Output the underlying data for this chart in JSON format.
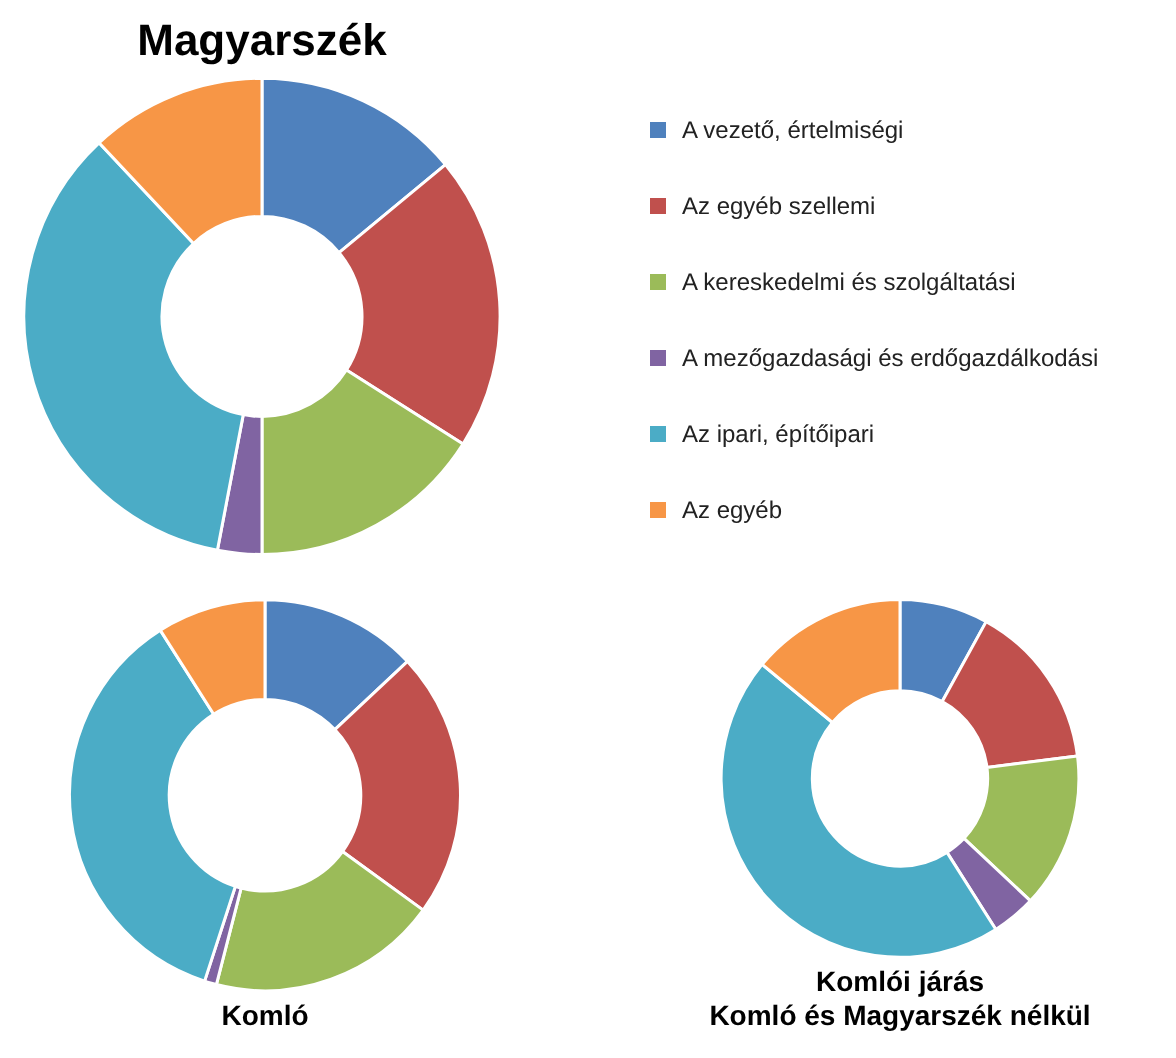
{
  "chart_data": [
    {
      "type": "donut",
      "title": "Magyarszék",
      "legend": "right",
      "categories": [
        "A vezető, értelmiségi",
        "Az egyéb szellemi",
        "A kereskedelmi és szolgáltatási",
        "A mezőgazdasági és erdőgazdálkodási",
        "Az ipari, építőipari",
        "Az egyéb"
      ],
      "values": [
        14,
        20,
        16,
        3,
        35,
        12
      ],
      "colors": [
        "#4f81bd",
        "#c0504d",
        "#9bbb59",
        "#8064a2",
        "#4bacc6",
        "#f79646"
      ]
    },
    {
      "type": "donut",
      "title": "Komló",
      "categories": [
        null,
        null,
        null,
        null,
        null,
        null
      ],
      "values": [
        13,
        22,
        19,
        1,
        36,
        9
      ],
      "colors": [
        "#4f81bd",
        "#c0504d",
        "#9bbb59",
        "#8064a2",
        "#4bacc6",
        "#f79646"
      ]
    },
    {
      "type": "donut",
      "title": "Komlói járás\nKomló és Magyarszék nélkül",
      "categories": [
        null,
        null,
        null,
        null,
        null,
        null
      ],
      "values": [
        8,
        15,
        14,
        4,
        45,
        14
      ],
      "colors": [
        "#4f81bd",
        "#c0504d",
        "#9bbb59",
        "#8064a2",
        "#4bacc6",
        "#f79646"
      ]
    }
  ]
}
